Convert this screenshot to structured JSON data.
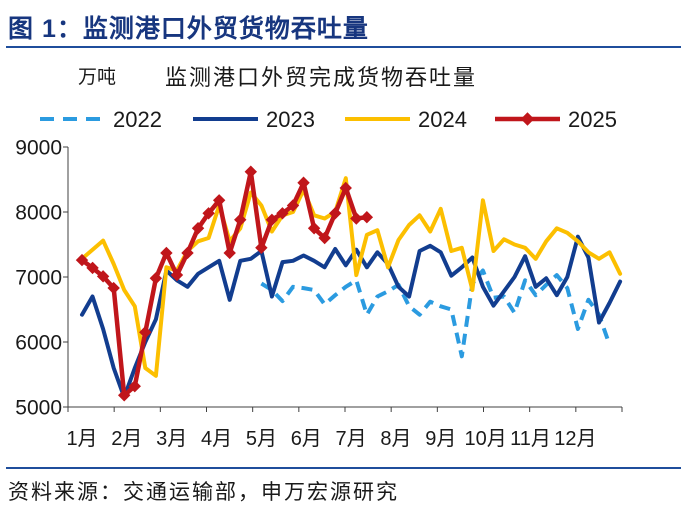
{
  "figure": {
    "title": "图 1：监测港口外贸货物吞吐量",
    "source": "资料来源：交通运输部，申万宏源研究"
  },
  "colors": {
    "title": "#17367f",
    "rule": "#1f4e9c",
    "axis": "#404040"
  },
  "chart_data": {
    "type": "line",
    "title": "监测港口外贸完成货物吞吐量",
    "ylabel": "万吨",
    "x_labels": [
      "1月",
      "2月",
      "3月",
      "4月",
      "5月",
      "6月",
      "7月",
      "8月",
      "9月",
      "10月",
      "11月",
      "12月"
    ],
    "weeks_per_year": 52,
    "ylim": [
      5000,
      9000
    ],
    "yticks": [
      5000,
      6000,
      7000,
      8000,
      9000
    ],
    "grid": false,
    "legend": "top",
    "series": [
      {
        "name": "2022",
        "color": "#2b9be0",
        "dashed": true,
        "markers": false,
        "start_week": 18,
        "values": [
          6900,
          6800,
          6630,
          6850,
          6830,
          6800,
          6580,
          6720,
          6850,
          6950,
          6420,
          6700,
          6780,
          6880,
          6550,
          6420,
          6620,
          6550,
          6500,
          5780,
          6900,
          7100,
          6680,
          6700,
          6450,
          6950,
          6720,
          6880,
          7030,
          6830,
          6200,
          6650,
          6420,
          5960
        ]
      },
      {
        "name": "2023",
        "color": "#123d8f",
        "dashed": false,
        "markers": false,
        "start_week": 1,
        "values": [
          6420,
          6700,
          6200,
          5600,
          5150,
          5600,
          6000,
          6350,
          7100,
          6950,
          6850,
          7050,
          7150,
          7250,
          6650,
          7250,
          7280,
          7400,
          6700,
          7230,
          7250,
          7330,
          7250,
          7150,
          7430,
          7180,
          7420,
          7150,
          7380,
          7200,
          6850,
          6700,
          7400,
          7480,
          7380,
          7020,
          7150,
          7300,
          6850,
          6560,
          6780,
          7000,
          7320,
          6850,
          6980,
          6720,
          7000,
          7620,
          7300,
          6300,
          6600,
          6930
        ]
      },
      {
        "name": "2024",
        "color": "#fcbf00",
        "dashed": false,
        "markers": false,
        "start_week": 1,
        "values": [
          7280,
          7420,
          7560,
          7200,
          6800,
          6550,
          5600,
          5480,
          7150,
          7100,
          7400,
          7550,
          7600,
          8100,
          7550,
          7750,
          8300,
          8100,
          7700,
          7950,
          8000,
          8340,
          7950,
          7900,
          8000,
          8520,
          7030,
          7650,
          7720,
          7150,
          7570,
          7800,
          7950,
          7700,
          8050,
          7400,
          7450,
          6800,
          8180,
          7400,
          7580,
          7500,
          7450,
          7280,
          7550,
          7750,
          7680,
          7550,
          7380,
          7280,
          7380,
          7050
        ]
      },
      {
        "name": "2025",
        "color": "#c0161b",
        "dashed": false,
        "markers": true,
        "start_week": 1,
        "values": [
          7260,
          7140,
          7010,
          6830,
          5180,
          5320,
          6150,
          6980,
          7370,
          7030,
          7370,
          7750,
          7980,
          8180,
          7370,
          7880,
          8620,
          7450,
          7880,
          7980,
          8100,
          8450,
          7750,
          7600,
          7980,
          8370,
          7900,
          7920
        ]
      }
    ]
  }
}
